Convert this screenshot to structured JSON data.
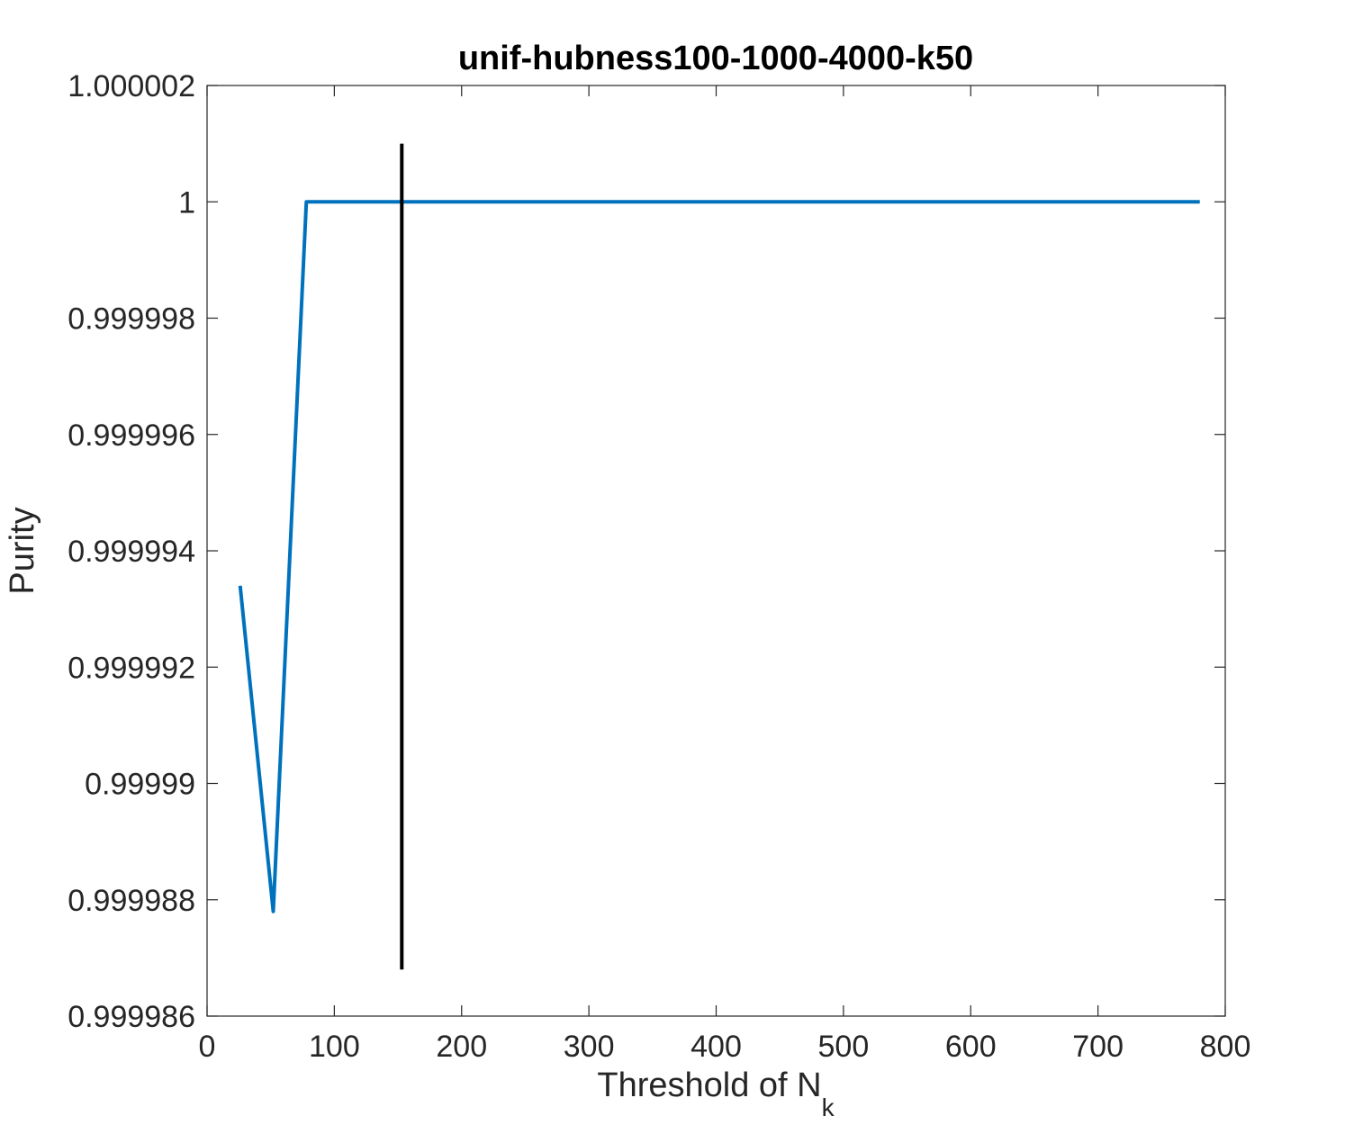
{
  "chart_data": {
    "type": "line",
    "title": "unif-hubness100-1000-4000-k50",
    "xlabel_main": "Threshold of N",
    "xlabel_sub": "k",
    "ylabel": "Purity",
    "xlim": [
      0,
      800
    ],
    "ylim": [
      0.999986,
      1.000002
    ],
    "xticks": [
      0,
      100,
      200,
      300,
      400,
      500,
      600,
      700,
      800
    ],
    "xtick_labels": [
      "0",
      "100",
      "200",
      "300",
      "400",
      "500",
      "600",
      "700",
      "800"
    ],
    "yticks": [
      0.999986,
      0.999988,
      0.99999,
      0.999992,
      0.999994,
      0.999996,
      0.999998,
      1,
      1.000002
    ],
    "ytick_labels": [
      "0.999986",
      "0.999988",
      "0.99999",
      "0.999992",
      "0.999994",
      "0.999996",
      "0.999998",
      "1",
      "1.000002"
    ],
    "grid": false,
    "series": [
      {
        "color": "#0072BD",
        "x": [
          26,
          52,
          78,
          780
        ],
        "y": [
          0.9999934,
          0.9999878,
          1.0,
          1.0
        ]
      }
    ],
    "vertical_marker": {
      "color": "#000000",
      "x": 153,
      "y_range": [
        0.9999868,
        1.000001
      ]
    }
  }
}
